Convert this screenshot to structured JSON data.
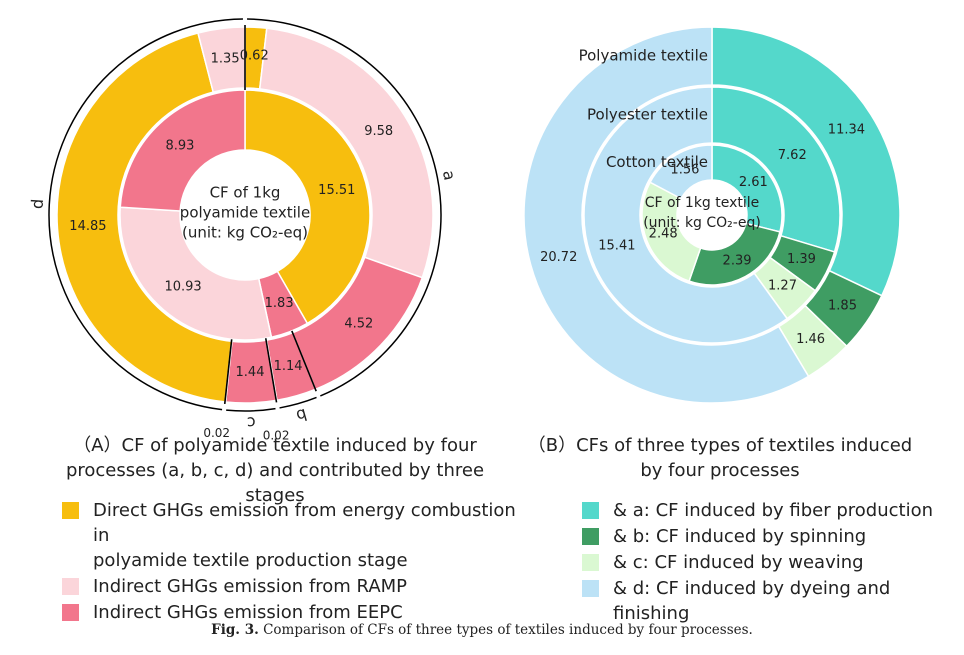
{
  "colors": {
    "direct": "#F7BE0E",
    "ramp": "#FBD5DA",
    "eepc": "#F2768C",
    "fiber": "#54D8CB",
    "spinning": "#3F9D63",
    "weaving": "#DAF8D2",
    "dyeing": "#BCE2F6"
  },
  "chart_data": [
    {
      "type": "pie",
      "panel": "A",
      "center_label": [
        "CF of 1kg",
        "polyamide textile",
        "(unit: kg CO₂-eq)"
      ],
      "outer_ring_processes": [
        {
          "name": "a",
          "segments": [
            {
              "stage": "direct",
              "value": 0.62
            },
            {
              "stage": "ramp",
              "value": 9.58
            },
            {
              "stage": "eepc",
              "value": 4.52
            }
          ]
        },
        {
          "name": "b",
          "segments": [
            {
              "stage": "eepc",
              "value": 1.14
            },
            {
              "stage": "direct",
              "value": 0.02
            }
          ]
        },
        {
          "name": "c",
          "segments": [
            {
              "stage": "eepc",
              "value": 1.44
            },
            {
              "stage": "direct",
              "value": 0.02
            }
          ]
        },
        {
          "name": "d",
          "segments": [
            {
              "stage": "direct",
              "value": 14.85
            },
            {
              "stage": "ramp",
              "value": 1.35
            }
          ]
        }
      ],
      "inner_ring": [
        {
          "stage": "direct",
          "value": 15.51
        },
        {
          "stage": "eepc",
          "value": 1.83
        },
        {
          "stage": "ramp",
          "value": 10.93
        },
        {
          "stage": "eepc",
          "value": 8.93
        }
      ]
    },
    {
      "type": "pie",
      "panel": "B",
      "center_label": [
        "CF of 1kg textile",
        "(unit: kg CO₂-eq)"
      ],
      "rings": [
        {
          "name": "Polyamide textile",
          "values": [
            {
              "process": "fiber",
              "value": 11.34
            },
            {
              "process": "spinning",
              "value": 1.85
            },
            {
              "process": "weaving",
              "value": 1.46
            },
            {
              "process": "dyeing",
              "value": 20.72
            }
          ]
        },
        {
          "name": "Polyester textile",
          "values": [
            {
              "process": "fiber",
              "value": 7.62
            },
            {
              "process": "spinning",
              "value": 1.39
            },
            {
              "process": "weaving",
              "value": 1.27
            },
            {
              "process": "dyeing",
              "value": 15.41
            }
          ]
        },
        {
          "name": "Cotton textile",
          "values": [
            {
              "process": "fiber",
              "value": 2.61
            },
            {
              "process": "spinning",
              "value": 2.39
            },
            {
              "process": "weaving",
              "value": 2.48
            },
            {
              "process": "dyeing",
              "value": 1.56
            }
          ]
        }
      ]
    }
  ],
  "subtitles": {
    "a_line1": "（A）CF of polyamide textile induced by four",
    "a_line2": "processes (a, b, c, d) and contributed by three stages",
    "b_line1": "（B）CFs of three types of textiles induced",
    "b_line2": "by four processes"
  },
  "legend_a": [
    {
      "key": "direct",
      "label_line1": "Direct GHGs emission from energy combustion in",
      "label_line2": "polyamide textile production stage"
    },
    {
      "key": "ramp",
      "label_line1": "Indirect GHGs emission from RAMP",
      "label_line2": ""
    },
    {
      "key": "eepc",
      "label_line1": "Indirect GHGs emission from EEPC",
      "label_line2": ""
    }
  ],
  "legend_b": [
    {
      "key": "fiber",
      "label": "& a: CF induced by fiber production"
    },
    {
      "key": "spinning",
      "label": "& b: CF induced by spinning"
    },
    {
      "key": "weaving",
      "label": "& c: CF induced by weaving"
    },
    {
      "key": "dyeing",
      "label": "& d: CF induced by dyeing and finishing"
    }
  ],
  "caption": {
    "bold": "Fig. 3.",
    "text": " Comparison of CFs of three types of textiles induced by four processes."
  }
}
